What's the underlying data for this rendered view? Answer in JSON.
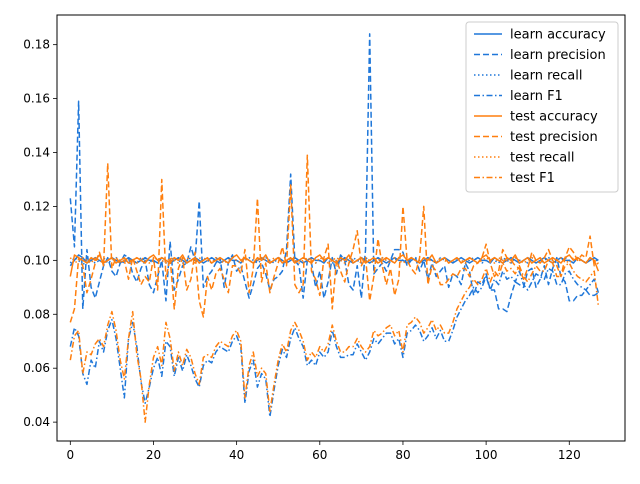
{
  "chart_data": {
    "type": "line",
    "title": "",
    "xlabel": "",
    "ylabel": "",
    "xlim": [
      -3.2,
      133.4
    ],
    "ylim": [
      0.033,
      0.191
    ],
    "x_ticks": [
      0,
      20,
      40,
      60,
      80,
      100,
      120
    ],
    "y_ticks": [
      0.04,
      0.06,
      0.08,
      0.1,
      0.12,
      0.14,
      0.16,
      0.18
    ],
    "y_tick_labels": [
      "0.04",
      "0.06",
      "0.08",
      "0.10",
      "0.12",
      "0.14",
      "0.16",
      "0.18"
    ],
    "grid": false,
    "legend_position": "top-right",
    "x_count": 128,
    "series": [
      {
        "name": "learn accuracy",
        "color": "#1f77d9",
        "linestyle": "solid",
        "values": [
          0.098,
          0.1,
          0.102,
          0.101,
          0.099,
          0.1,
          0.101,
          0.1,
          0.099,
          0.1,
          0.101,
          0.1,
          0.099,
          0.1,
          0.101,
          0.1,
          0.099,
          0.1,
          0.101,
          0.1,
          0.1,
          0.099,
          0.101,
          0.1,
          0.099,
          0.1,
          0.101,
          0.1,
          0.099,
          0.1,
          0.101,
          0.1,
          0.099,
          0.1,
          0.101,
          0.1,
          0.099,
          0.1,
          0.101,
          0.1,
          0.1,
          0.099,
          0.101,
          0.1,
          0.099,
          0.1,
          0.101,
          0.1,
          0.099,
          0.1,
          0.101,
          0.1,
          0.099,
          0.1,
          0.101,
          0.1,
          0.099,
          0.1,
          0.101,
          0.1,
          0.1,
          0.099,
          0.101,
          0.1,
          0.099,
          0.1,
          0.101,
          0.1,
          0.099,
          0.1,
          0.101,
          0.1,
          0.099,
          0.1,
          0.101,
          0.1,
          0.099,
          0.1,
          0.101,
          0.1,
          0.1,
          0.099,
          0.101,
          0.1,
          0.099,
          0.1,
          0.101,
          0.1,
          0.099,
          0.1,
          0.101,
          0.1,
          0.099,
          0.1,
          0.101,
          0.1,
          0.099,
          0.1,
          0.101,
          0.1,
          0.1,
          0.099,
          0.101,
          0.1,
          0.099,
          0.1,
          0.101,
          0.1,
          0.099,
          0.1,
          0.101,
          0.1,
          0.099,
          0.1,
          0.101,
          0.1,
          0.099,
          0.1,
          0.101,
          0.1,
          0.1,
          0.099,
          0.101,
          0.1,
          0.099,
          0.1,
          0.101,
          0.1
        ]
      },
      {
        "name": "learn precision",
        "color": "#1f77d9",
        "linestyle": "dashed",
        "values": [
          0.123,
          0.105,
          0.159,
          0.082,
          0.104,
          0.09,
          0.086,
          0.092,
          0.098,
          0.101,
          0.096,
          0.094,
          0.099,
          0.102,
          0.101,
          0.095,
          0.092,
          0.097,
          0.1,
          0.091,
          0.088,
          0.094,
          0.1,
          0.085,
          0.107,
          0.089,
          0.093,
          0.098,
          0.099,
          0.105,
          0.1,
          0.122,
          0.09,
          0.094,
          0.096,
          0.099,
          0.101,
          0.09,
          0.099,
          0.102,
          0.096,
          0.098,
          0.092,
          0.086,
          0.091,
          0.097,
          0.099,
          0.095,
          0.089,
          0.093,
          0.094,
          0.096,
          0.104,
          0.132,
          0.1,
          0.098,
          0.086,
          0.1,
          0.099,
          0.09,
          0.096,
          0.086,
          0.092,
          0.101,
          0.095,
          0.102,
          0.1,
          0.091,
          0.089,
          0.098,
          0.086,
          0.104,
          0.184,
          0.095,
          0.097,
          0.099,
          0.096,
          0.1,
          0.104,
          0.104,
          0.103,
          0.098,
          0.1,
          0.101,
          0.096,
          0.1,
          0.093,
          0.099,
          0.094,
          0.096,
          0.098,
          0.09,
          0.095,
          0.094,
          0.091,
          0.099,
          0.096,
          0.087,
          0.092,
          0.091,
          0.095,
          0.089,
          0.089,
          0.082,
          0.082,
          0.081,
          0.087,
          0.092,
          0.091,
          0.09,
          0.096,
          0.097,
          0.09,
          0.093,
          0.098,
          0.091,
          0.097,
          0.101,
          0.094,
          0.092,
          0.085,
          0.085,
          0.087,
          0.087,
          0.089,
          0.087,
          0.087,
          0.088
        ]
      },
      {
        "name": "learn recall",
        "color": "#1f77d9",
        "linestyle": "dotted",
        "values": [
          0.099,
          0.101,
          0.1,
          0.098,
          0.101,
          0.1,
          0.099,
          0.1,
          0.101,
          0.099,
          0.1,
          0.101,
          0.1,
          0.099,
          0.101,
          0.1,
          0.099,
          0.101,
          0.1,
          0.1,
          0.099,
          0.101,
          0.1,
          0.099,
          0.1,
          0.101,
          0.1,
          0.099,
          0.1,
          0.101,
          0.1,
          0.099,
          0.101,
          0.1,
          0.099,
          0.101,
          0.1,
          0.1,
          0.099,
          0.101,
          0.1,
          0.099,
          0.1,
          0.101,
          0.1,
          0.099,
          0.1,
          0.101,
          0.1,
          0.099,
          0.101,
          0.1,
          0.099,
          0.101,
          0.1,
          0.1,
          0.099,
          0.101,
          0.1,
          0.099,
          0.1,
          0.101,
          0.1,
          0.099,
          0.1,
          0.101,
          0.1,
          0.099,
          0.101,
          0.1,
          0.099,
          0.101,
          0.1,
          0.1,
          0.099,
          0.101,
          0.1,
          0.099,
          0.1,
          0.101,
          0.1,
          0.099,
          0.1,
          0.101,
          0.1,
          0.099,
          0.101,
          0.1,
          0.099,
          0.101,
          0.1,
          0.1,
          0.099,
          0.101,
          0.1,
          0.099,
          0.1,
          0.101,
          0.1,
          0.099,
          0.1,
          0.101,
          0.1,
          0.099,
          0.101,
          0.1,
          0.099,
          0.101,
          0.1,
          0.1,
          0.099,
          0.101,
          0.1,
          0.099,
          0.1,
          0.101,
          0.1,
          0.099,
          0.1,
          0.101,
          0.1,
          0.099,
          0.101,
          0.1,
          0.099,
          0.101,
          0.1,
          0.1
        ]
      },
      {
        "name": "learn F1",
        "color": "#1f77d9",
        "linestyle": "dashdot",
        "values": [
          0.068,
          0.075,
          0.072,
          0.058,
          0.054,
          0.063,
          0.06,
          0.07,
          0.066,
          0.074,
          0.078,
          0.071,
          0.06,
          0.049,
          0.071,
          0.077,
          0.068,
          0.055,
          0.047,
          0.053,
          0.06,
          0.064,
          0.057,
          0.07,
          0.068,
          0.057,
          0.064,
          0.059,
          0.065,
          0.061,
          0.056,
          0.053,
          0.061,
          0.063,
          0.062,
          0.066,
          0.068,
          0.067,
          0.066,
          0.07,
          0.072,
          0.068,
          0.047,
          0.059,
          0.063,
          0.053,
          0.058,
          0.056,
          0.042,
          0.052,
          0.061,
          0.067,
          0.064,
          0.071,
          0.075,
          0.071,
          0.068,
          0.061,
          0.063,
          0.061,
          0.066,
          0.064,
          0.066,
          0.074,
          0.068,
          0.064,
          0.064,
          0.065,
          0.065,
          0.069,
          0.066,
          0.063,
          0.066,
          0.071,
          0.069,
          0.071,
          0.073,
          0.073,
          0.069,
          0.071,
          0.064,
          0.073,
          0.074,
          0.076,
          0.074,
          0.07,
          0.072,
          0.075,
          0.071,
          0.074,
          0.07,
          0.07,
          0.074,
          0.079,
          0.082,
          0.085,
          0.087,
          0.09,
          0.088,
          0.09,
          0.094,
          0.089,
          0.093,
          0.091,
          0.096,
          0.093,
          0.094,
          0.092,
          0.096,
          0.091,
          0.089,
          0.092,
          0.095,
          0.094,
          0.093,
          0.097,
          0.096,
          0.091,
          0.091,
          0.095,
          0.096,
          0.093,
          0.091,
          0.09,
          0.089,
          0.091,
          0.093,
          0.088
        ]
      },
      {
        "name": "test accuracy",
        "color": "#ff7f0e",
        "linestyle": "solid",
        "values": [
          0.094,
          0.102,
          0.101,
          0.1,
          0.099,
          0.101,
          0.1,
          0.102,
          0.099,
          0.1,
          0.101,
          0.099,
          0.1,
          0.101,
          0.099,
          0.1,
          0.101,
          0.1,
          0.099,
          0.101,
          0.102,
          0.1,
          0.101,
          0.1,
          0.099,
          0.101,
          0.1,
          0.102,
          0.099,
          0.1,
          0.101,
          0.099,
          0.1,
          0.101,
          0.099,
          0.1,
          0.101,
          0.1,
          0.099,
          0.101,
          0.102,
          0.1,
          0.101,
          0.1,
          0.099,
          0.101,
          0.1,
          0.102,
          0.099,
          0.1,
          0.101,
          0.099,
          0.1,
          0.101,
          0.099,
          0.1,
          0.101,
          0.1,
          0.099,
          0.101,
          0.102,
          0.1,
          0.101,
          0.1,
          0.099,
          0.101,
          0.1,
          0.102,
          0.099,
          0.1,
          0.101,
          0.099,
          0.1,
          0.101,
          0.099,
          0.1,
          0.101,
          0.1,
          0.099,
          0.101,
          0.102,
          0.1,
          0.101,
          0.1,
          0.099,
          0.101,
          0.1,
          0.102,
          0.099,
          0.1,
          0.101,
          0.099,
          0.1,
          0.101,
          0.099,
          0.1,
          0.101,
          0.1,
          0.099,
          0.101,
          0.102,
          0.1,
          0.101,
          0.1,
          0.099,
          0.101,
          0.1,
          0.102,
          0.099,
          0.1,
          0.101,
          0.099,
          0.1,
          0.101,
          0.099,
          0.1,
          0.101,
          0.1,
          0.099,
          0.101,
          0.102,
          0.1,
          0.101,
          0.1,
          0.099,
          0.101,
          0.1,
          0.096
        ]
      },
      {
        "name": "test precision",
        "color": "#ff7f0e",
        "linestyle": "dashed",
        "values": [
          0.077,
          0.082,
          0.101,
          0.098,
          0.088,
          0.093,
          0.099,
          0.103,
          0.098,
          0.136,
          0.097,
          0.101,
          0.099,
          0.1,
          0.093,
          0.101,
          0.096,
          0.091,
          0.094,
          0.092,
          0.101,
          0.089,
          0.13,
          0.093,
          0.101,
          0.082,
          0.097,
          0.101,
          0.089,
          0.093,
          0.103,
          0.085,
          0.079,
          0.094,
          0.089,
          0.095,
          0.097,
          0.093,
          0.088,
          0.098,
          0.098,
          0.095,
          0.104,
          0.088,
          0.097,
          0.123,
          0.092,
          0.099,
          0.088,
          0.094,
          0.099,
          0.105,
          0.098,
          0.128,
          0.091,
          0.088,
          0.091,
          0.139,
          0.096,
          0.093,
          0.087,
          0.101,
          0.106,
          0.082,
          0.1,
          0.096,
          0.092,
          0.099,
          0.104,
          0.111,
          0.098,
          0.101,
          0.085,
          0.094,
          0.108,
          0.098,
          0.091,
          0.097,
          0.087,
          0.093,
          0.12,
          0.1,
          0.097,
          0.095,
          0.101,
          0.12,
          0.091,
          0.098,
          0.096,
          0.091,
          0.091,
          0.093,
          0.095,
          0.094,
          0.097,
          0.097,
          0.094,
          0.098,
          0.099,
          0.101,
          0.106,
          0.099,
          0.094,
          0.096,
          0.104,
          0.101,
          0.1,
          0.098,
          0.097,
          0.093,
          0.097,
          0.103,
          0.1,
          0.099,
          0.101,
          0.104,
          0.1,
          0.098,
          0.094,
          0.101,
          0.105,
          0.103,
          0.1,
          0.102,
          0.101,
          0.109,
          0.098,
          0.099
        ]
      },
      {
        "name": "test recall",
        "color": "#ff7f0e",
        "linestyle": "dotted",
        "values": [
          0.101,
          0.099,
          0.1,
          0.101,
          0.1,
          0.099,
          0.101,
          0.1,
          0.099,
          0.1,
          0.101,
          0.1,
          0.099,
          0.101,
          0.1,
          0.1,
          0.099,
          0.101,
          0.1,
          0.099,
          0.1,
          0.101,
          0.1,
          0.099,
          0.101,
          0.1,
          0.099,
          0.1,
          0.101,
          0.1,
          0.099,
          0.101,
          0.1,
          0.1,
          0.099,
          0.101,
          0.1,
          0.099,
          0.1,
          0.101,
          0.1,
          0.099,
          0.101,
          0.1,
          0.099,
          0.1,
          0.101,
          0.1,
          0.099,
          0.101,
          0.1,
          0.1,
          0.099,
          0.101,
          0.1,
          0.099,
          0.1,
          0.101,
          0.1,
          0.099,
          0.101,
          0.1,
          0.099,
          0.1,
          0.101,
          0.1,
          0.099,
          0.101,
          0.1,
          0.1,
          0.099,
          0.101,
          0.1,
          0.099,
          0.1,
          0.101,
          0.1,
          0.099,
          0.101,
          0.1,
          0.099,
          0.1,
          0.101,
          0.1,
          0.099,
          0.101,
          0.1,
          0.1,
          0.099,
          0.101,
          0.1,
          0.099,
          0.1,
          0.101,
          0.1,
          0.099,
          0.101,
          0.1,
          0.099,
          0.1,
          0.101,
          0.1,
          0.099,
          0.101,
          0.1,
          0.1,
          0.099,
          0.101,
          0.1,
          0.099,
          0.1,
          0.101,
          0.1,
          0.099,
          0.101,
          0.1,
          0.099,
          0.1,
          0.101,
          0.1,
          0.099,
          0.101,
          0.1,
          0.1,
          0.099,
          0.101,
          0.1,
          0.099
        ]
      },
      {
        "name": "test F1",
        "color": "#ff7f0e",
        "linestyle": "dashdot",
        "values": [
          0.063,
          0.072,
          0.074,
          0.058,
          0.066,
          0.065,
          0.069,
          0.071,
          0.068,
          0.076,
          0.081,
          0.074,
          0.063,
          0.056,
          0.071,
          0.081,
          0.065,
          0.056,
          0.04,
          0.054,
          0.064,
          0.068,
          0.061,
          0.077,
          0.071,
          0.059,
          0.066,
          0.061,
          0.067,
          0.064,
          0.058,
          0.054,
          0.064,
          0.065,
          0.064,
          0.068,
          0.07,
          0.069,
          0.068,
          0.072,
          0.074,
          0.07,
          0.049,
          0.061,
          0.066,
          0.057,
          0.06,
          0.058,
          0.044,
          0.054,
          0.063,
          0.069,
          0.066,
          0.074,
          0.077,
          0.074,
          0.07,
          0.063,
          0.066,
          0.064,
          0.068,
          0.066,
          0.069,
          0.076,
          0.07,
          0.066,
          0.066,
          0.068,
          0.068,
          0.071,
          0.068,
          0.066,
          0.068,
          0.074,
          0.072,
          0.073,
          0.075,
          0.076,
          0.072,
          0.074,
          0.066,
          0.076,
          0.077,
          0.079,
          0.077,
          0.073,
          0.075,
          0.078,
          0.074,
          0.076,
          0.073,
          0.073,
          0.077,
          0.082,
          0.085,
          0.088,
          0.09,
          0.093,
          0.091,
          0.093,
          0.097,
          0.092,
          0.096,
          0.094,
          0.099,
          0.096,
          0.097,
          0.095,
          0.098,
          0.094,
          0.092,
          0.095,
          0.098,
          0.096,
          0.096,
          0.1,
          0.099,
          0.094,
          0.094,
          0.098,
          0.099,
          0.096,
          0.094,
          0.093,
          0.092,
          0.094,
          0.096,
          0.083
        ]
      }
    ]
  }
}
